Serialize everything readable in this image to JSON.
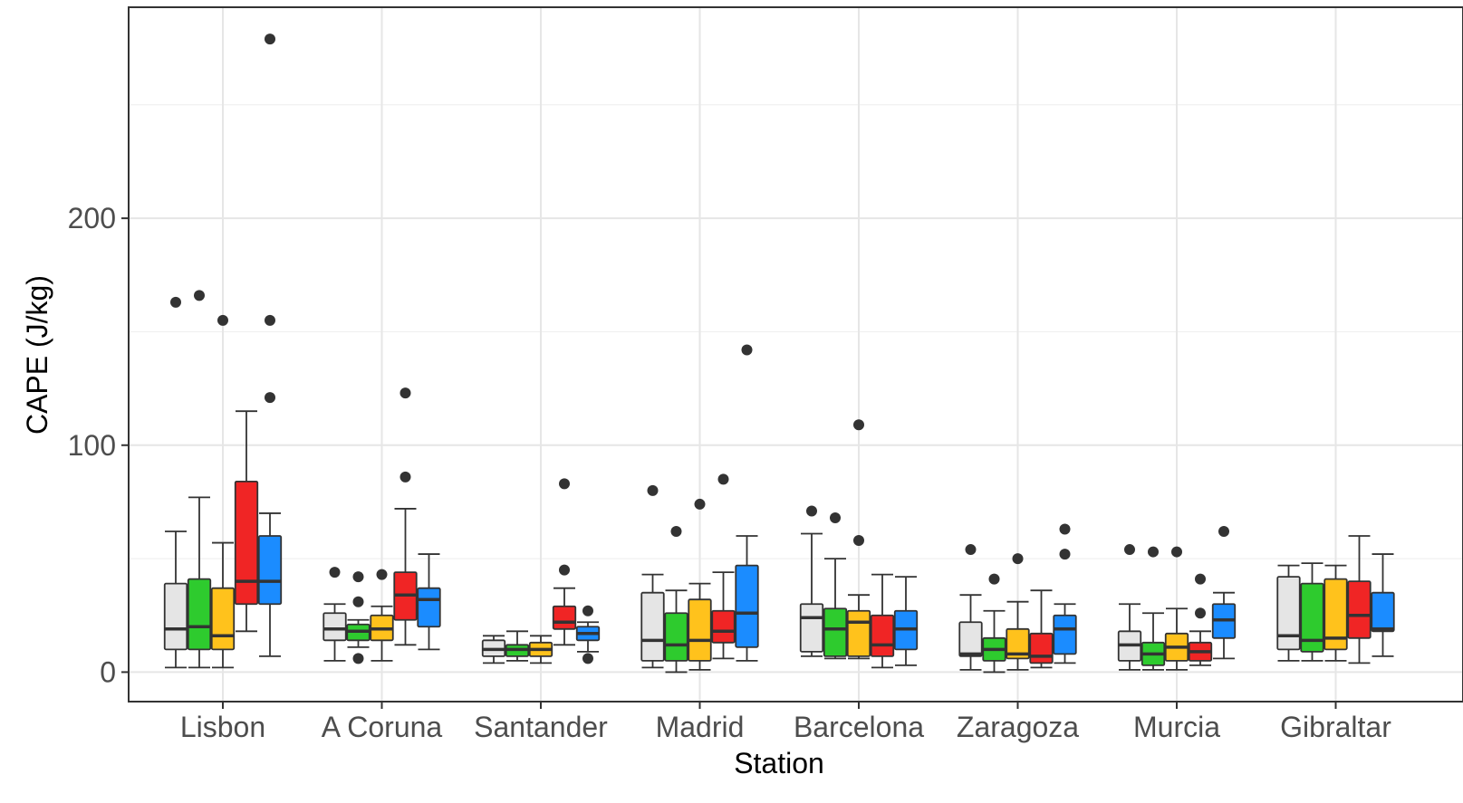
{
  "chart_data": {
    "type": "boxplot",
    "xlabel": "Station",
    "ylabel": "CAPE (J/kg)",
    "ylim": [
      -13,
      293
    ],
    "yticks": [
      0,
      100,
      200
    ],
    "grid": true,
    "legend": "none",
    "categories": [
      "Lisbon",
      "A Coruna",
      "Santander",
      "Madrid",
      "Barcelona",
      "Zaragoza",
      "Murcia",
      "Gibraltar"
    ],
    "group_colors": [
      "#e5e5e5",
      "#2ecb2e",
      "#ffc21c",
      "#f02525",
      "#1b8cff"
    ],
    "groups": [
      [
        {
          "min": 2,
          "q1": 10,
          "median": 19,
          "q3": 39,
          "max": 62,
          "outliers": [
            163
          ]
        },
        {
          "min": 2,
          "q1": 10,
          "median": 20,
          "q3": 41,
          "max": 77,
          "outliers": [
            166
          ]
        },
        {
          "min": 2,
          "q1": 10,
          "median": 16,
          "q3": 37,
          "max": 57,
          "outliers": [
            155
          ]
        },
        {
          "min": 18,
          "q1": 30,
          "median": 40,
          "q3": 84,
          "max": 115,
          "outliers": []
        },
        {
          "min": 7,
          "q1": 30,
          "median": 40,
          "q3": 60,
          "max": 70,
          "outliers": [
            279,
            155,
            121
          ]
        }
      ],
      [
        {
          "min": 5,
          "q1": 14,
          "median": 19,
          "q3": 26,
          "max": 30,
          "outliers": [
            44
          ]
        },
        {
          "min": 11,
          "q1": 14,
          "median": 18,
          "q3": 21,
          "max": 23,
          "outliers": [
            42,
            31,
            6
          ]
        },
        {
          "min": 5,
          "q1": 14,
          "median": 19,
          "q3": 25,
          "max": 29,
          "outliers": [
            43
          ]
        },
        {
          "min": 12,
          "q1": 23,
          "median": 34,
          "q3": 44,
          "max": 72,
          "outliers": [
            123,
            86
          ]
        },
        {
          "min": 10,
          "q1": 20,
          "median": 32,
          "q3": 37,
          "max": 52,
          "outliers": []
        }
      ],
      [
        {
          "min": 4,
          "q1": 7,
          "median": 10,
          "q3": 14,
          "max": 16,
          "outliers": []
        },
        {
          "min": 5,
          "q1": 7,
          "median": 10,
          "q3": 12,
          "max": 18,
          "outliers": []
        },
        {
          "min": 4,
          "q1": 7,
          "median": 10,
          "q3": 13,
          "max": 16,
          "outliers": []
        },
        {
          "min": 12,
          "q1": 19,
          "median": 22,
          "q3": 29,
          "max": 37,
          "outliers": [
            83,
            45
          ]
        },
        {
          "min": 9,
          "q1": 14,
          "median": 17,
          "q3": 20,
          "max": 22,
          "outliers": [
            27,
            6
          ]
        }
      ],
      [
        {
          "min": 2,
          "q1": 5,
          "median": 14,
          "q3": 35,
          "max": 43,
          "outliers": [
            80
          ]
        },
        {
          "min": 0,
          "q1": 5,
          "median": 12,
          "q3": 26,
          "max": 36,
          "outliers": [
            62
          ]
        },
        {
          "min": 1,
          "q1": 5,
          "median": 14,
          "q3": 32,
          "max": 39,
          "outliers": [
            74
          ]
        },
        {
          "min": 6,
          "q1": 13,
          "median": 18,
          "q3": 27,
          "max": 44,
          "outliers": [
            85
          ]
        },
        {
          "min": 5,
          "q1": 11,
          "median": 26,
          "q3": 47,
          "max": 60,
          "outliers": [
            142
          ]
        }
      ],
      [
        {
          "min": 7,
          "q1": 9,
          "median": 24,
          "q3": 30,
          "max": 61,
          "outliers": [
            71
          ]
        },
        {
          "min": 6,
          "q1": 7,
          "median": 19,
          "q3": 28,
          "max": 50,
          "outliers": [
            68
          ]
        },
        {
          "min": 6,
          "q1": 7,
          "median": 22,
          "q3": 27,
          "max": 34,
          "outliers": [
            109,
            58
          ]
        },
        {
          "min": 2,
          "q1": 7,
          "median": 12,
          "q3": 25,
          "max": 43,
          "outliers": []
        },
        {
          "min": 3,
          "q1": 10,
          "median": 19,
          "q3": 27,
          "max": 42,
          "outliers": []
        }
      ],
      [
        {
          "min": 1,
          "q1": 7,
          "median": 8,
          "q3": 22,
          "max": 34,
          "outliers": [
            54
          ]
        },
        {
          "min": 0,
          "q1": 5,
          "median": 10,
          "q3": 15,
          "max": 27,
          "outliers": [
            41
          ]
        },
        {
          "min": 1,
          "q1": 6,
          "median": 8,
          "q3": 19,
          "max": 31,
          "outliers": [
            50
          ]
        },
        {
          "min": 2,
          "q1": 4,
          "median": 7,
          "q3": 17,
          "max": 36,
          "outliers": []
        },
        {
          "min": 4,
          "q1": 8,
          "median": 19,
          "q3": 25,
          "max": 30,
          "outliers": [
            63,
            52
          ]
        }
      ],
      [
        {
          "min": 1,
          "q1": 5,
          "median": 12,
          "q3": 18,
          "max": 30,
          "outliers": [
            54
          ]
        },
        {
          "min": 1,
          "q1": 3,
          "median": 8,
          "q3": 13,
          "max": 26,
          "outliers": [
            53
          ]
        },
        {
          "min": 1,
          "q1": 5,
          "median": 11,
          "q3": 17,
          "max": 28,
          "outliers": [
            53
          ]
        },
        {
          "min": 3,
          "q1": 5,
          "median": 9,
          "q3": 13,
          "max": 18,
          "outliers": [
            41,
            26
          ]
        },
        {
          "min": 6,
          "q1": 15,
          "median": 23,
          "q3": 30,
          "max": 35,
          "outliers": [
            62
          ]
        }
      ],
      [
        {
          "min": 5,
          "q1": 10,
          "median": 16,
          "q3": 42,
          "max": 47,
          "outliers": []
        },
        {
          "min": 5,
          "q1": 9,
          "median": 14,
          "q3": 39,
          "max": 48,
          "outliers": []
        },
        {
          "min": 5,
          "q1": 10,
          "median": 15,
          "q3": 41,
          "max": 47,
          "outliers": []
        },
        {
          "min": 4,
          "q1": 15,
          "median": 25,
          "q3": 40,
          "max": 60,
          "outliers": []
        },
        {
          "min": 7,
          "q1": 18,
          "median": 19,
          "q3": 35,
          "max": 52,
          "outliers": []
        }
      ]
    ]
  }
}
